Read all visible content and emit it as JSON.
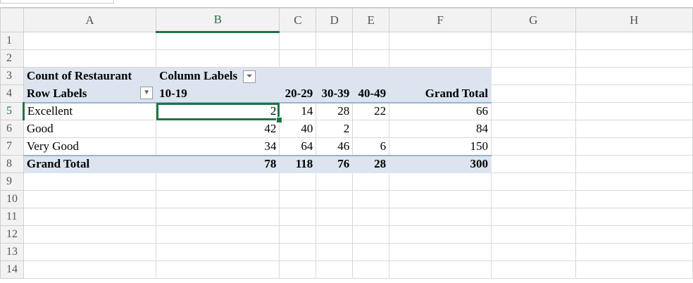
{
  "columns": [
    "A",
    "B",
    "C",
    "D",
    "E",
    "F",
    "G",
    "H"
  ],
  "selected_cell": "B5",
  "rows": [
    {
      "n": "1",
      "cells": [
        "",
        "",
        "",
        "",
        "",
        "",
        "",
        ""
      ]
    },
    {
      "n": "2",
      "cells": [
        "",
        "",
        "",
        "",
        "",
        "",
        "",
        ""
      ]
    },
    {
      "n": "3",
      "cells": [
        "Count of Restaurant",
        "Column Labels",
        "",
        "",
        "",
        "",
        "",
        ""
      ]
    },
    {
      "n": "4",
      "cells": [
        "Row Labels",
        "10-19",
        "20-29",
        "30-39",
        "40-49",
        "Grand Total",
        "",
        ""
      ]
    },
    {
      "n": "5",
      "cells": [
        "Excellent",
        "2",
        "14",
        "28",
        "22",
        "66",
        "",
        ""
      ]
    },
    {
      "n": "6",
      "cells": [
        "Good",
        "42",
        "40",
        "2",
        "",
        "84",
        "",
        ""
      ]
    },
    {
      "n": "7",
      "cells": [
        "Very Good",
        "34",
        "64",
        "46",
        "6",
        "150",
        "",
        ""
      ]
    },
    {
      "n": "8",
      "cells": [
        "Grand Total",
        "78",
        "118",
        "76",
        "28",
        "300",
        "",
        ""
      ]
    },
    {
      "n": "9",
      "cells": [
        "",
        "",
        "",
        "",
        "",
        "",
        "",
        ""
      ]
    },
    {
      "n": "10",
      "cells": [
        "",
        "",
        "",
        "",
        "",
        "",
        "",
        ""
      ]
    },
    {
      "n": "11",
      "cells": [
        "",
        "",
        "",
        "",
        "",
        "",
        "",
        ""
      ]
    },
    {
      "n": "12",
      "cells": [
        "",
        "",
        "",
        "",
        "",
        "",
        "",
        ""
      ]
    },
    {
      "n": "13",
      "cells": [
        "",
        "",
        "",
        "",
        "",
        "",
        "",
        ""
      ]
    },
    {
      "n": "14",
      "cells": [
        "",
        "",
        "",
        "",
        "",
        "",
        "",
        ""
      ]
    }
  ],
  "icons": {
    "row_labels_dropdown": "dropdown-arrow-icon",
    "column_labels_filter": "filter-icon"
  },
  "colors": {
    "accent": "#217346",
    "pivot_fill": "#dce4ef",
    "pivot_line": "#95b3d7"
  }
}
